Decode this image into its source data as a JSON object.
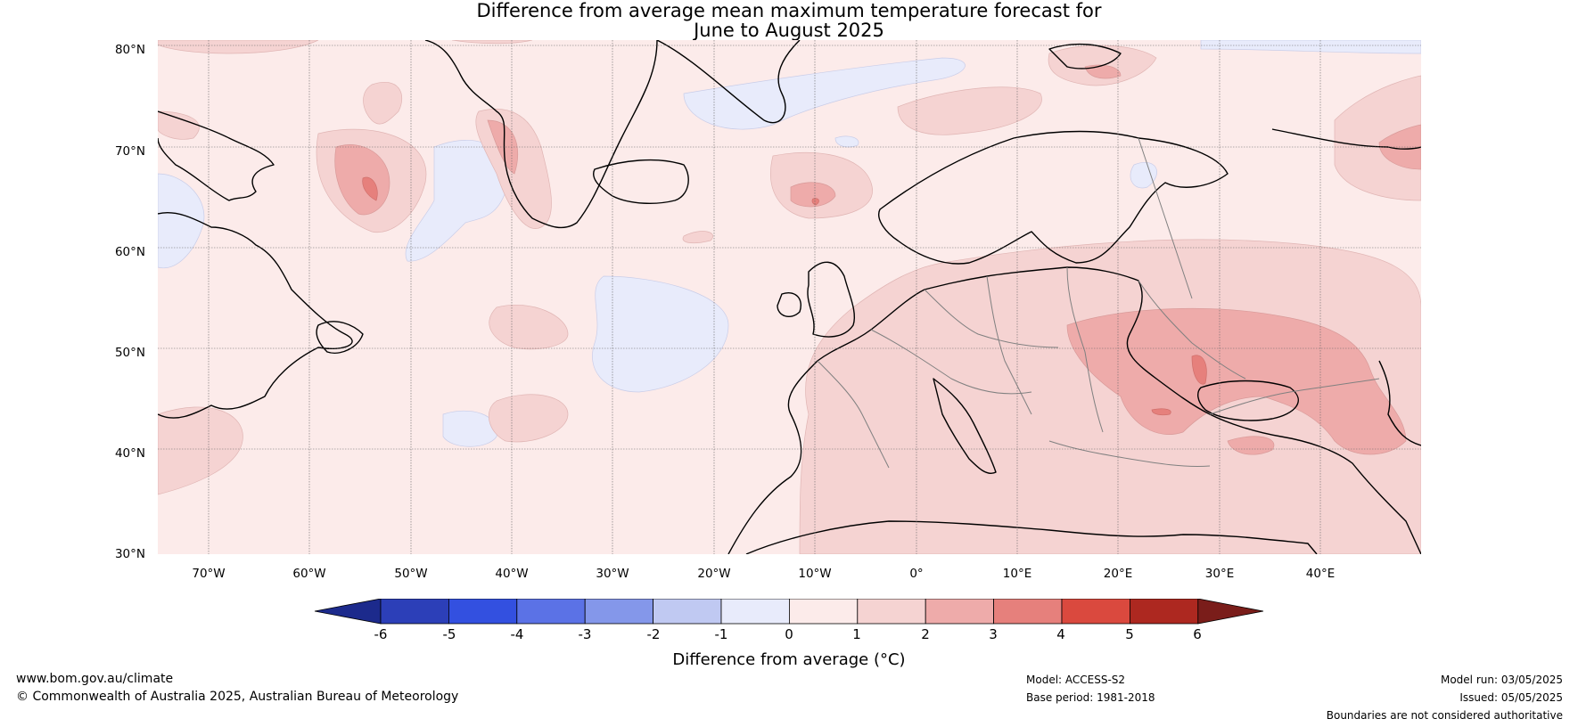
{
  "title": {
    "line1": "Difference from average mean maximum temperature forecast for",
    "line2": "June to August 2025"
  },
  "map": {
    "lat_labels": [
      "80°N",
      "70°N",
      "60°N",
      "50°N",
      "40°N",
      "30°N"
    ],
    "lon_labels": [
      "70°W",
      "60°W",
      "50°W",
      "40°W",
      "30°W",
      "20°W",
      "10°W",
      "0°",
      "10°E",
      "20°E",
      "30°E",
      "40°E"
    ],
    "base_color": "#fcebea",
    "coast_color": "#000000",
    "border_color": "#808080"
  },
  "colorbar": {
    "ticks": [
      "-6",
      "-5",
      "-4",
      "-3",
      "-2",
      "-1",
      "0",
      "1",
      "2",
      "3",
      "4",
      "5",
      "6"
    ],
    "colors": [
      "#1c2a8c",
      "#2c3fb8",
      "#3350e0",
      "#5b72e6",
      "#8497ea",
      "#c0c9f2",
      "#e8ebfb",
      "#fcebea",
      "#f5d3d2",
      "#eeabaa",
      "#e6807c",
      "#da493e",
      "#ad2820",
      "#7a1d1a"
    ],
    "label": "Difference from average (°C)"
  },
  "footer": {
    "website": "www.bom.gov.au/climate",
    "copyright": "© Commonwealth of Australia 2025, Australian Bureau of Meteorology",
    "model": "Model: ACCESS-S2",
    "base_period": "Base period: 1981-2018",
    "model_run": "Model run: 03/05/2025",
    "issued": "Issued: 05/05/2025",
    "disclaimer": "Boundaries are not considered authoritative"
  }
}
